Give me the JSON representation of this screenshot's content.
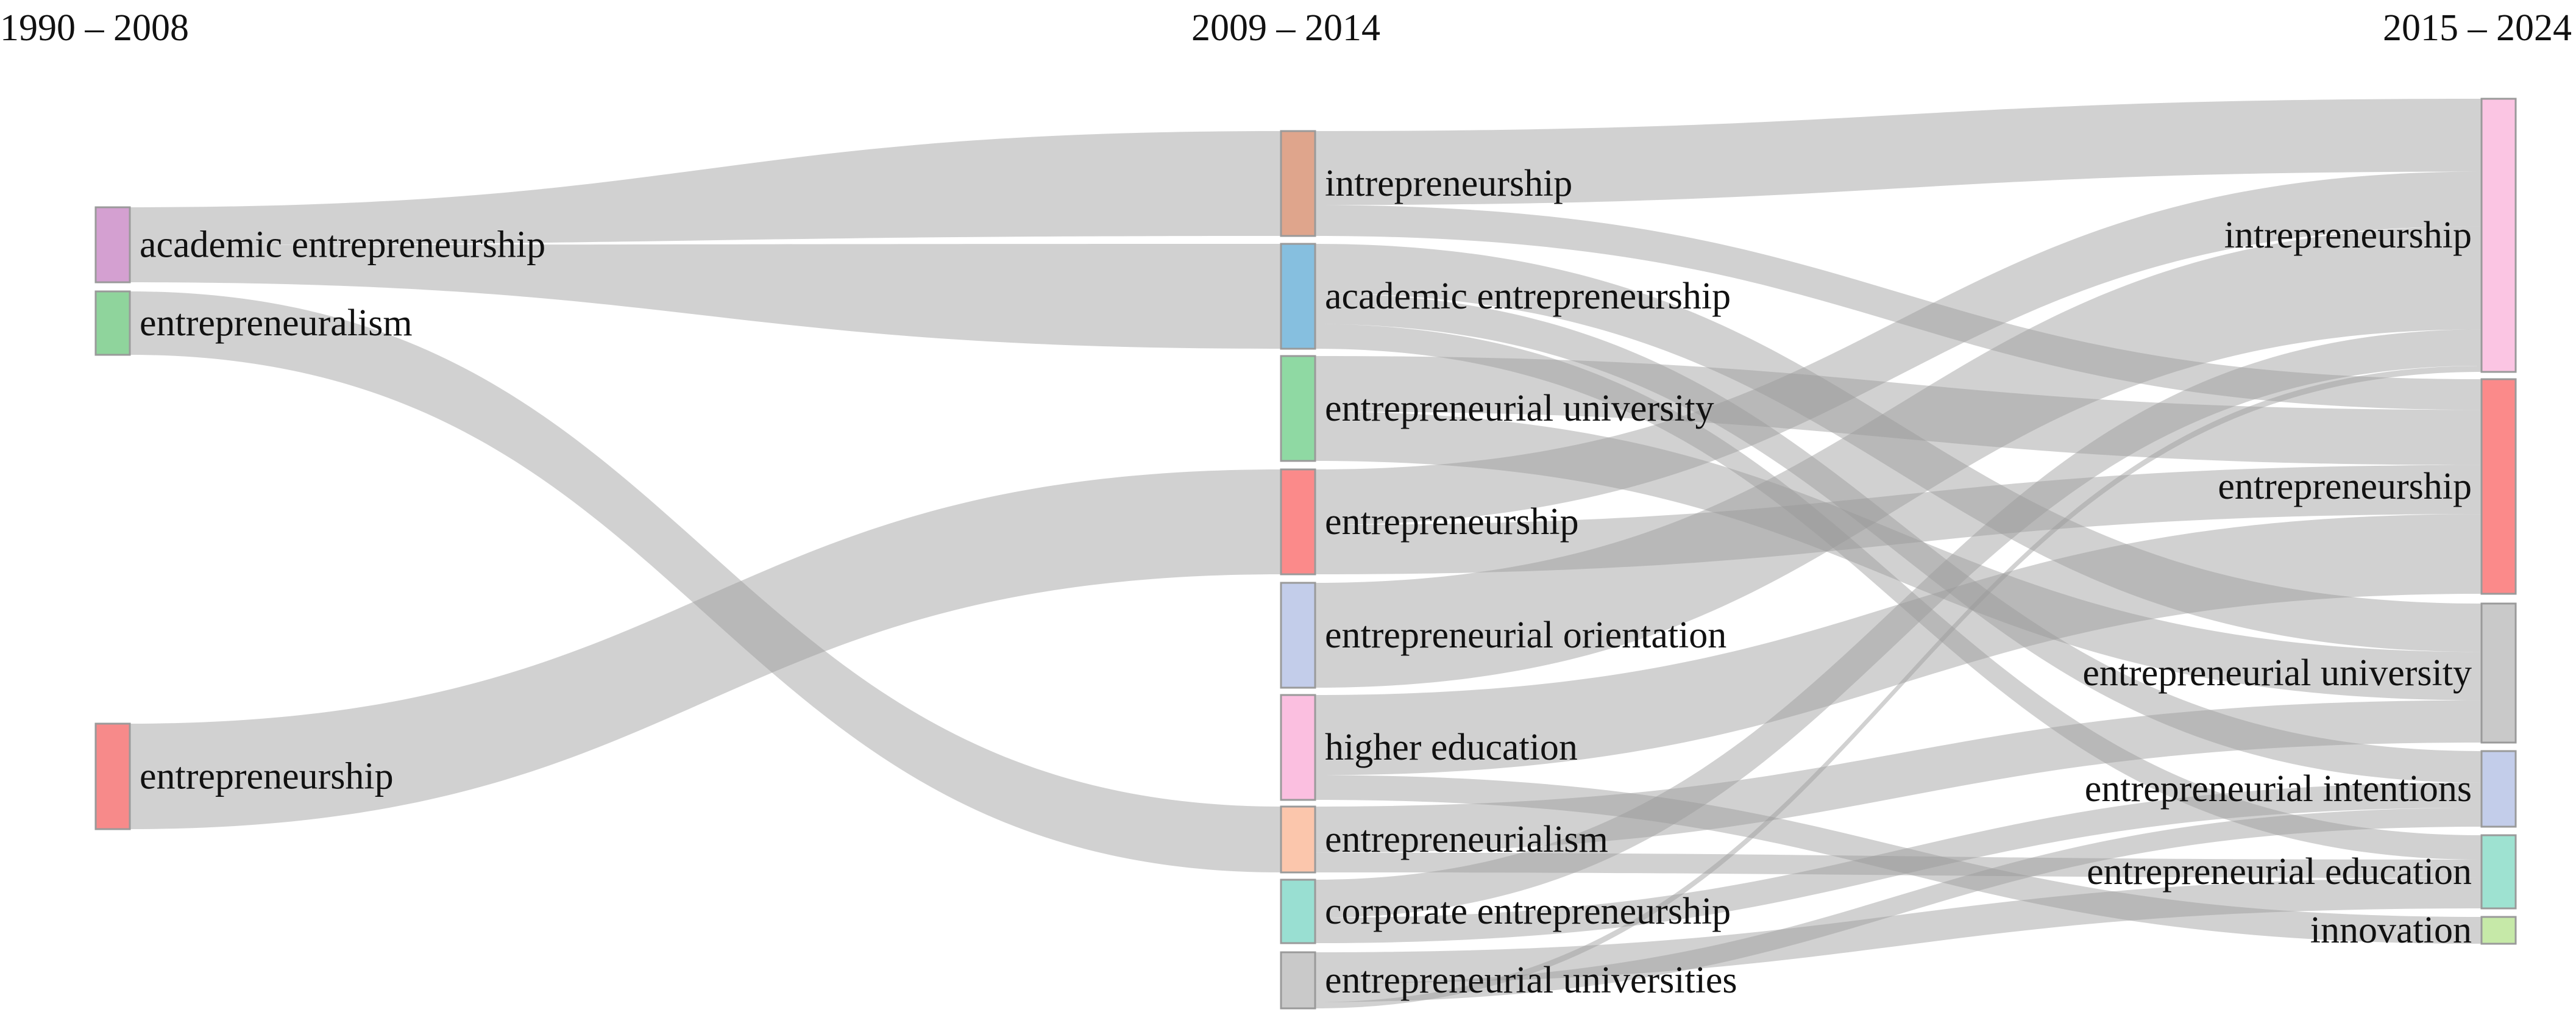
{
  "periods": [
    {
      "id": "p1",
      "title": "1990 – 2008"
    },
    {
      "id": "p2",
      "title": "2009 – 2014"
    },
    {
      "id": "p3",
      "title": "2015 – 2024"
    }
  ],
  "nodes": [
    {
      "id": "p1-academic",
      "period": "p1",
      "label": "academic entrepreneurship",
      "color": "#d4a0d1",
      "value": 1
    },
    {
      "id": "p1-ism",
      "period": "p1",
      "label": "entrepreneuralism",
      "color": "#8fd49c",
      "value": 1
    },
    {
      "id": "p1-ent",
      "period": "p1",
      "label": "entrepreneurship",
      "color": "#f78a8a",
      "value": 1.7
    },
    {
      "id": "p2-intra",
      "period": "p2",
      "label": "intrepreneurship",
      "color": "#dfa58c",
      "value": 1.7
    },
    {
      "id": "p2-academic",
      "period": "p2",
      "label": "academic entrepreneurship",
      "color": "#86bfdf",
      "value": 1.7
    },
    {
      "id": "p2-uni",
      "period": "p2",
      "label": "entrepreneurial university",
      "color": "#8fd9a3",
      "value": 1.7
    },
    {
      "id": "p2-ent",
      "period": "p2",
      "label": "entrepreneurship",
      "color": "#fb8a8a",
      "value": 1.7
    },
    {
      "id": "p2-orient",
      "period": "p2",
      "label": "entrepreneurial orientation",
      "color": "#c3cdea",
      "value": 1.7
    },
    {
      "id": "p2-hedu",
      "period": "p2",
      "label": "higher education",
      "color": "#fbbfe0",
      "value": 1.7
    },
    {
      "id": "p2-ialism",
      "period": "p2",
      "label": "entrepreneurialism",
      "color": "#fbc6ac",
      "value": 1
    },
    {
      "id": "p2-corp",
      "period": "p2",
      "label": "corporate entrepreneurship",
      "color": "#99dfd2",
      "value": 1
    },
    {
      "id": "p2-unis",
      "period": "p2",
      "label": "entrepreneurial universities",
      "color": "#c9c9c9",
      "value": 0.9
    },
    {
      "id": "p3-intra",
      "period": "p3",
      "label": "intrepreneurship",
      "color": "#fbc5e3",
      "value": 4.4
    },
    {
      "id": "p3-ent",
      "period": "p3",
      "label": "entrepreneurship",
      "color": "#fb8a8a",
      "value": 3.5
    },
    {
      "id": "p3-uni",
      "period": "p3",
      "label": "entrepreneurial university",
      "color": "#c9c9c9",
      "value": 2.3
    },
    {
      "id": "p3-intent",
      "period": "p3",
      "label": "entrepreneurial intentions",
      "color": "#c3cdea",
      "value": 1.2
    },
    {
      "id": "p3-edu",
      "period": "p3",
      "label": "entrepreneurial education",
      "color": "#9ee2d1",
      "value": 1.2
    },
    {
      "id": "p3-innov",
      "period": "p3",
      "label": "innovation",
      "color": "#c6e9a8",
      "value": 0.4
    }
  ],
  "links": [
    {
      "source": "p1-academic",
      "target": "p2-intra",
      "value": 0.5
    },
    {
      "source": "p1-academic",
      "target": "p2-academic",
      "value": 0.5
    },
    {
      "source": "p1-ism",
      "target": "p2-ialism",
      "value": 1
    },
    {
      "source": "p1-ent",
      "target": "p2-ent",
      "value": 1.7
    },
    {
      "source": "p2-intra",
      "target": "p3-intra",
      "value": 1.2
    },
    {
      "source": "p2-intra",
      "target": "p3-ent",
      "value": 0.5
    },
    {
      "source": "p2-academic",
      "target": "p3-uni",
      "value": 0.8
    },
    {
      "source": "p2-academic",
      "target": "p3-intent",
      "value": 0.5
    },
    {
      "source": "p2-academic",
      "target": "p3-edu",
      "value": 0.4
    },
    {
      "source": "p2-uni",
      "target": "p3-ent",
      "value": 0.9
    },
    {
      "source": "p2-uni",
      "target": "p3-uni",
      "value": 0.8
    },
    {
      "source": "p2-ent",
      "target": "p3-intra",
      "value": 0.9
    },
    {
      "source": "p2-ent",
      "target": "p3-ent",
      "value": 0.8
    },
    {
      "source": "p2-orient",
      "target": "p3-intra",
      "value": 1.7
    },
    {
      "source": "p2-hedu",
      "target": "p3-ent",
      "value": 1.3
    },
    {
      "source": "p2-hedu",
      "target": "p3-innov",
      "value": 0.4
    },
    {
      "source": "p2-ialism",
      "target": "p3-uni",
      "value": 0.7
    },
    {
      "source": "p2-ialism",
      "target": "p3-edu",
      "value": 0.3
    },
    {
      "source": "p2-corp",
      "target": "p3-intra",
      "value": 0.6
    },
    {
      "source": "p2-corp",
      "target": "p3-intent",
      "value": 0.4
    },
    {
      "source": "p2-unis",
      "target": "p3-edu",
      "value": 0.5
    },
    {
      "source": "p2-unis",
      "target": "p3-intent",
      "value": 0.3
    },
    {
      "source": "p2-unis",
      "target": "p3-intra",
      "value": 0.1
    }
  ],
  "colors": {
    "link": "#9a9a9a",
    "node_border": "#9a9a9a"
  }
}
